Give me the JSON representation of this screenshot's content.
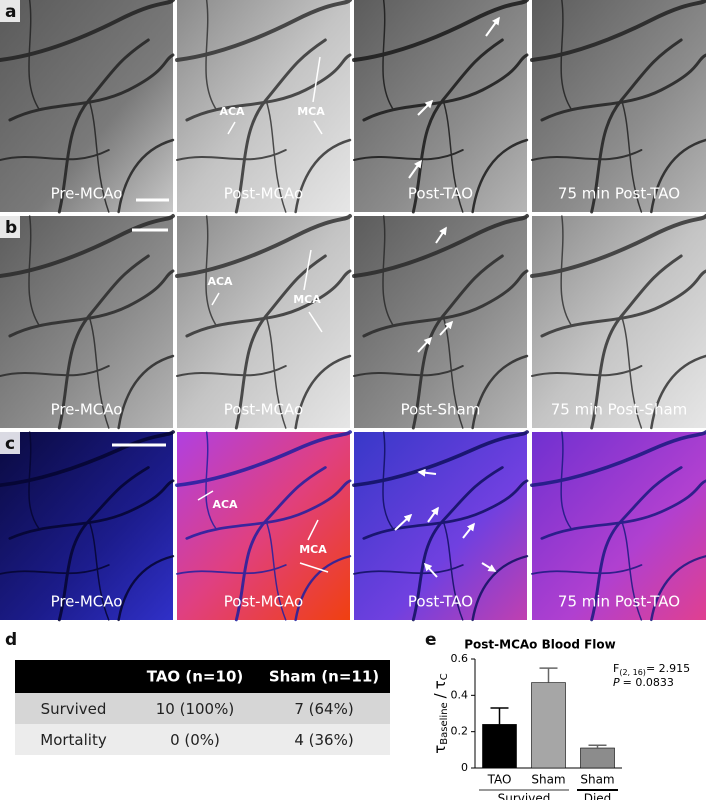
{
  "figure": {
    "panels": [
      {
        "letter": "a",
        "tiles": [
          "Pre-MCAo",
          "Post-MCAo",
          "Post-TAO",
          "75 min Post-TAO"
        ],
        "annotations": [
          "ACA",
          "MCA"
        ]
      },
      {
        "letter": "b",
        "tiles": [
          "Pre-MCAo",
          "Post-MCAo",
          "Post-Sham",
          "75 min Post-Sham"
        ],
        "annotations": [
          "ACA",
          "MCA"
        ]
      },
      {
        "letter": "c",
        "tiles": [
          "Pre-MCAo",
          "Post-MCAo",
          "Post-TAO",
          "75 min Post-TAO"
        ],
        "annotations": [
          "ACA",
          "MCA"
        ]
      }
    ],
    "table": {
      "letter": "d",
      "columns": [
        "TAO (n=10)",
        "Sham (n=11)"
      ],
      "rows": [
        {
          "label": "Survived",
          "cells": [
            "10 (100%)",
            "7 (64%)"
          ]
        },
        {
          "label": "Mortality",
          "cells": [
            "0 (0%)",
            "4 (36%)"
          ]
        }
      ]
    }
  },
  "chart_data": {
    "type": "bar",
    "letter": "e",
    "title": "Post-MCAo Blood Flow",
    "ylabel": {
      "symbol": "τ",
      "numerator_sub": "Baseline",
      "separator": "/",
      "denominator_sub": "C"
    },
    "categories": [
      "TAO",
      "Sham",
      "Sham"
    ],
    "values": [
      0.24,
      0.47,
      0.11
    ],
    "errors": [
      0.09,
      0.08,
      0.015
    ],
    "colors": [
      "#000000",
      "#a6a6a6",
      "#8c8c8c"
    ],
    "ylim": [
      0,
      0.6
    ],
    "yticks": [
      0,
      0.2,
      0.4,
      0.6
    ],
    "groups": [
      {
        "name": "Survived",
        "size": 2,
        "color": "#999999"
      },
      {
        "name": "Died",
        "size": 1,
        "color": "#000000"
      }
    ],
    "stats": {
      "f_symbol": "F",
      "f_sub": "(2, 16)",
      "f_text": "= 2.915",
      "p_symbol": "P",
      "p_text": "= 0.0833"
    }
  }
}
